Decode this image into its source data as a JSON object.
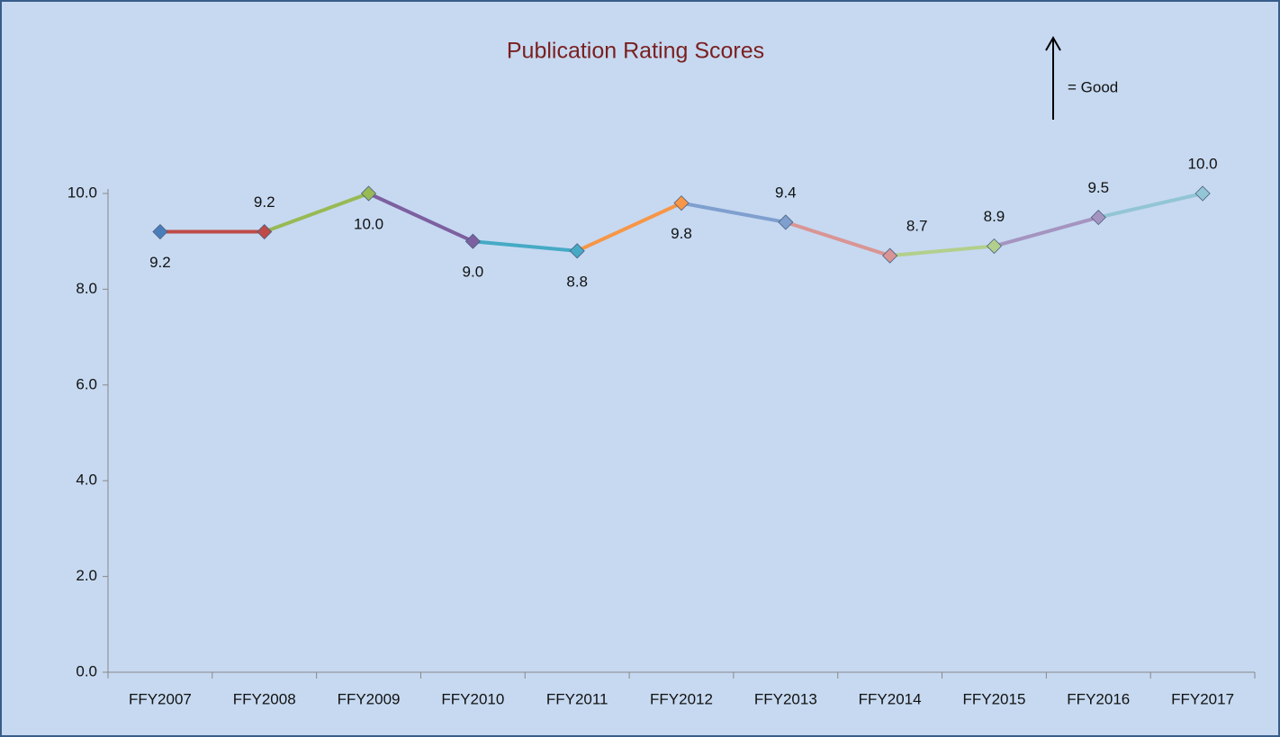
{
  "chart_data": {
    "type": "line",
    "title": "Publication Rating Scores",
    "annotation": "=  Good",
    "categories": [
      "FFY2007",
      "FFY2008",
      "FFY2009",
      "FFY2010",
      "FFY2011",
      "FFY2012",
      "FFY2013",
      "FFY2014",
      "FFY2015",
      "FFY2016",
      "FFY2017"
    ],
    "values": [
      9.2,
      9.2,
      10,
      9,
      8.8,
      9.8,
      9.4,
      8.7,
      8.9,
      9.5,
      10
    ],
    "value_labels": [
      "9.2",
      "9.2",
      "10.0",
      "9.0",
      "8.8",
      "9.8",
      "9.4",
      "8.7",
      "8.9",
      "9.5",
      "10.0"
    ],
    "point_colors": [
      "#4a7ebb",
      "#be4b48",
      "#98b954",
      "#7d60a0",
      "#46aac5",
      "#f79646",
      "#7f9fcf",
      "#d99594",
      "#b3cf8c",
      "#a594c0",
      "#92c5d5"
    ],
    "ylim": [
      0,
      10
    ],
    "yticks": [
      {
        "value": 0,
        "label": "0.0"
      },
      {
        "value": 2,
        "label": "2.0"
      },
      {
        "value": 4,
        "label": "4.0"
      },
      {
        "value": 6,
        "label": "6.0"
      },
      {
        "value": 8,
        "label": "8.0"
      },
      {
        "value": 10,
        "label": "10.0"
      }
    ],
    "grid": false
  }
}
